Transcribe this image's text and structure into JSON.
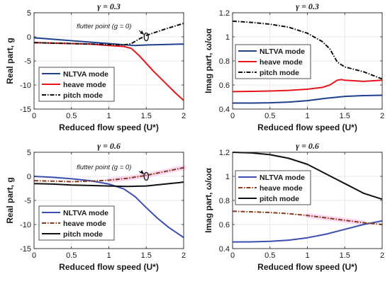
{
  "chart_data": [
    {
      "type": "line",
      "title": "γ = 0.3",
      "xlabel": "Reduced flow speed (U*)",
      "ylabel": "Real part, g",
      "xlim": [
        0,
        2
      ],
      "ylim": [
        -15,
        5
      ],
      "xticks": [
        0,
        0.5,
        1,
        1.5,
        2
      ],
      "xtick_labels": [
        "0",
        "0.5",
        "1",
        "1.5",
        "2"
      ],
      "yticks": [
        -15,
        -10,
        -5,
        0,
        5
      ],
      "ytick_labels": [
        "-15",
        "-10",
        "-5",
        "0",
        "5"
      ],
      "grid": true,
      "legend_position": "bottom-left",
      "annotation": {
        "text": "flutter point (g = 0)",
        "x": 1.5,
        "y": 0
      },
      "series": [
        {
          "name": "NLTVA mode",
          "color": "#1f3f8f",
          "style": "solid",
          "x": [
            0,
            0.25,
            0.5,
            0.75,
            1.0,
            1.25,
            1.35,
            1.5,
            1.75,
            2.0
          ],
          "y": [
            -0.2,
            -0.5,
            -0.8,
            -1.1,
            -1.4,
            -1.7,
            -1.8,
            -1.7,
            -1.6,
            -1.5
          ]
        },
        {
          "name": "heave mode",
          "color": "#e8141b",
          "style": "solid",
          "x": [
            0,
            0.25,
            0.5,
            0.75,
            1.0,
            1.2,
            1.3,
            1.4,
            1.5,
            1.6,
            1.75,
            1.9,
            2.0
          ],
          "y": [
            -1.2,
            -1.3,
            -1.4,
            -1.5,
            -1.8,
            -2.0,
            -2.4,
            -3.8,
            -5.5,
            -7.2,
            -9.5,
            -11.8,
            -13.2
          ]
        },
        {
          "name": "pitch mode",
          "color": "#111111",
          "style": "dashdot",
          "x": [
            0,
            0.25,
            0.5,
            0.75,
            1.0,
            1.2,
            1.3,
            1.4,
            1.5,
            1.75,
            2.0
          ],
          "y": [
            -1.2,
            -1.3,
            -1.4,
            -1.5,
            -1.6,
            -1.7,
            -1.4,
            -0.5,
            0.3,
            1.6,
            2.8
          ]
        }
      ]
    },
    {
      "type": "line",
      "title": "γ = 0.3",
      "xlabel": "Reduced flow speed (U*)",
      "ylabel": "Imag part, ω/ωα",
      "xlim": [
        0,
        2
      ],
      "ylim": [
        0.4,
        1.2
      ],
      "xticks": [
        0,
        0.5,
        1,
        1.5,
        2
      ],
      "xtick_labels": [
        "0",
        "0.5",
        "1",
        "1.5",
        "2"
      ],
      "yticks": [
        0.4,
        0.6,
        0.8,
        1,
        1.2
      ],
      "ytick_labels": [
        "0.4",
        "0.6",
        "0.8",
        "1",
        "1.2"
      ],
      "grid": true,
      "legend_position": "top-right",
      "series": [
        {
          "name": "NLTVA mode",
          "color": "#1f3f8f",
          "style": "solid",
          "x": [
            0,
            0.25,
            0.5,
            0.75,
            1.0,
            1.25,
            1.5,
            1.75,
            2.0
          ],
          "y": [
            0.45,
            0.45,
            0.452,
            0.458,
            0.47,
            0.49,
            0.505,
            0.512,
            0.515
          ]
        },
        {
          "name": "heave mode",
          "color": "#e8141b",
          "style": "solid",
          "x": [
            0,
            0.25,
            0.5,
            0.75,
            1.0,
            1.2,
            1.3,
            1.4,
            1.45,
            1.5,
            1.75,
            2.0
          ],
          "y": [
            0.545,
            0.547,
            0.55,
            0.555,
            0.565,
            0.58,
            0.6,
            0.64,
            0.645,
            0.64,
            0.63,
            0.64
          ]
        },
        {
          "name": "pitch mode",
          "color": "#111111",
          "style": "dashdot",
          "x": [
            0,
            0.25,
            0.5,
            0.75,
            1.0,
            1.2,
            1.3,
            1.4,
            1.5,
            1.75,
            2.0
          ],
          "y": [
            1.13,
            1.12,
            1.105,
            1.08,
            1.03,
            0.96,
            0.9,
            0.79,
            0.75,
            0.71,
            0.65
          ]
        }
      ]
    },
    {
      "type": "line",
      "title": "γ = 0.6",
      "xlabel": "Reduced flow speed (U*)",
      "ylabel": "Real part, g",
      "xlim": [
        0,
        2
      ],
      "ylim": [
        -15,
        5
      ],
      "xticks": [
        0,
        0.5,
        1,
        1.5,
        2
      ],
      "xtick_labels": [
        "0",
        "0.5",
        "1",
        "1.5",
        "2"
      ],
      "yticks": [
        -15,
        -10,
        -5,
        0,
        5
      ],
      "ytick_labels": [
        "-15",
        "-10",
        "-5",
        "0",
        "5"
      ],
      "grid": true,
      "legend_position": "bottom-left",
      "annotation": {
        "text": "flutter point (g = 0)",
        "x": 1.5,
        "y": 0
      },
      "series": [
        {
          "name": "NLTVA mode",
          "color": "#3a4fb0",
          "style": "solid",
          "x": [
            0,
            0.25,
            0.5,
            0.75,
            1.0,
            1.2,
            1.35,
            1.5,
            1.65,
            1.8,
            2.0
          ],
          "y": [
            0.0,
            -0.2,
            -0.5,
            -0.9,
            -1.6,
            -2.6,
            -4.2,
            -6.5,
            -8.7,
            -10.6,
            -12.7
          ]
        },
        {
          "name": "heave mode",
          "color": "#8a3a1a",
          "style": "dashdot",
          "x": [
            0,
            0.25,
            0.5,
            0.75,
            1.0,
            1.25,
            1.5,
            1.75,
            2.0
          ],
          "y": [
            -0.9,
            -1.0,
            -1.1,
            -1.0,
            -0.8,
            -0.4,
            0.2,
            1.0,
            1.8
          ]
        },
        {
          "name": "pitch mode",
          "color": "#111111",
          "style": "solid",
          "x": [
            0,
            0.25,
            0.5,
            0.75,
            1.0,
            1.25,
            1.5,
            1.75,
            2.0
          ],
          "y": [
            -1.5,
            -1.6,
            -1.8,
            -1.9,
            -2.0,
            -2.1,
            -2.0,
            -1.6,
            -1.2
          ]
        }
      ]
    },
    {
      "type": "line",
      "title": "γ = 0.6",
      "xlabel": "Reduced flow speed (U*)",
      "ylabel": "Imag part, ω/ωα",
      "xlim": [
        0,
        2
      ],
      "ylim": [
        0.4,
        1.2
      ],
      "xticks": [
        0,
        0.5,
        1,
        1.5,
        2
      ],
      "xtick_labels": [
        "0",
        "0.5",
        "1",
        "1.5",
        "2"
      ],
      "yticks": [
        0.4,
        0.6,
        0.8,
        1,
        1.2
      ],
      "ytick_labels": [
        "0.4",
        "0.6",
        "0.8",
        "1",
        "1.2"
      ],
      "grid": true,
      "legend_position": "top-right",
      "series": [
        {
          "name": "NLTVA mode",
          "color": "#3a4fb0",
          "style": "solid",
          "x": [
            0,
            0.25,
            0.5,
            0.75,
            1.0,
            1.25,
            1.5,
            1.75,
            2.0
          ],
          "y": [
            0.455,
            0.456,
            0.46,
            0.47,
            0.49,
            0.52,
            0.56,
            0.6,
            0.63
          ]
        },
        {
          "name": "heave mode",
          "color": "#8a3a1a",
          "style": "dashdot",
          "x": [
            0,
            0.25,
            0.5,
            0.75,
            1.0,
            1.25,
            1.5,
            1.75,
            2.0
          ],
          "y": [
            0.71,
            0.705,
            0.7,
            0.69,
            0.675,
            0.655,
            0.635,
            0.615,
            0.6
          ]
        },
        {
          "name": "pitch mode",
          "color": "#111111",
          "style": "solid",
          "x": [
            0,
            0.25,
            0.5,
            0.75,
            1.0,
            1.25,
            1.5,
            1.75,
            2.0
          ],
          "y": [
            1.2,
            1.195,
            1.18,
            1.15,
            1.1,
            1.02,
            0.94,
            0.86,
            0.81
          ]
        }
      ]
    }
  ]
}
